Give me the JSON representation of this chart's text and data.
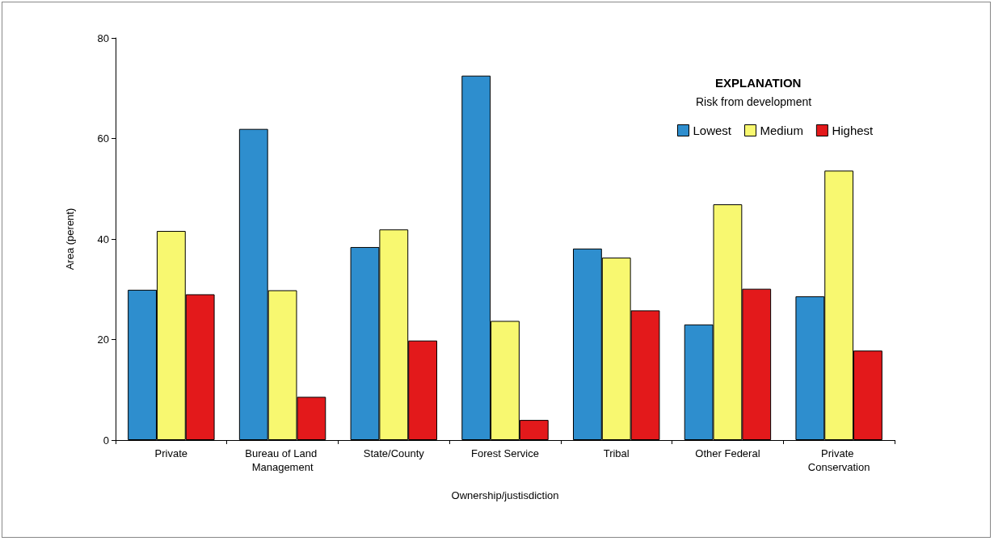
{
  "chart_data": {
    "type": "bar",
    "xlabel": "Ownership/justisdiction",
    "ylabel": "Area (perent)",
    "legend_title": "EXPLANATION",
    "annotations": [
      "Risk from development"
    ],
    "categories": [
      "Private",
      "Bureau of Land Management",
      "State/County",
      "Forest Service",
      "Tribal",
      "Other Federal",
      "Private Conservation"
    ],
    "series": [
      {
        "name": "Lowest",
        "color": "#2e8ece",
        "values": [
          29.9,
          61.9,
          38.4,
          72.5,
          38.1,
          23,
          28.6
        ]
      },
      {
        "name": "Medium",
        "color": "#f8f870",
        "values": [
          41.6,
          29.8,
          41.9,
          23.7,
          36.3,
          46.9,
          53.6
        ]
      },
      {
        "name": "Highest",
        "color": "#e3191b",
        "values": [
          29,
          8.6,
          19.8,
          4,
          25.8,
          30.1,
          17.8
        ]
      }
    ],
    "ylim": [
      0,
      80
    ],
    "yticks": [
      0,
      20,
      40,
      60,
      80
    ],
    "grid": false,
    "legend": "top right"
  }
}
